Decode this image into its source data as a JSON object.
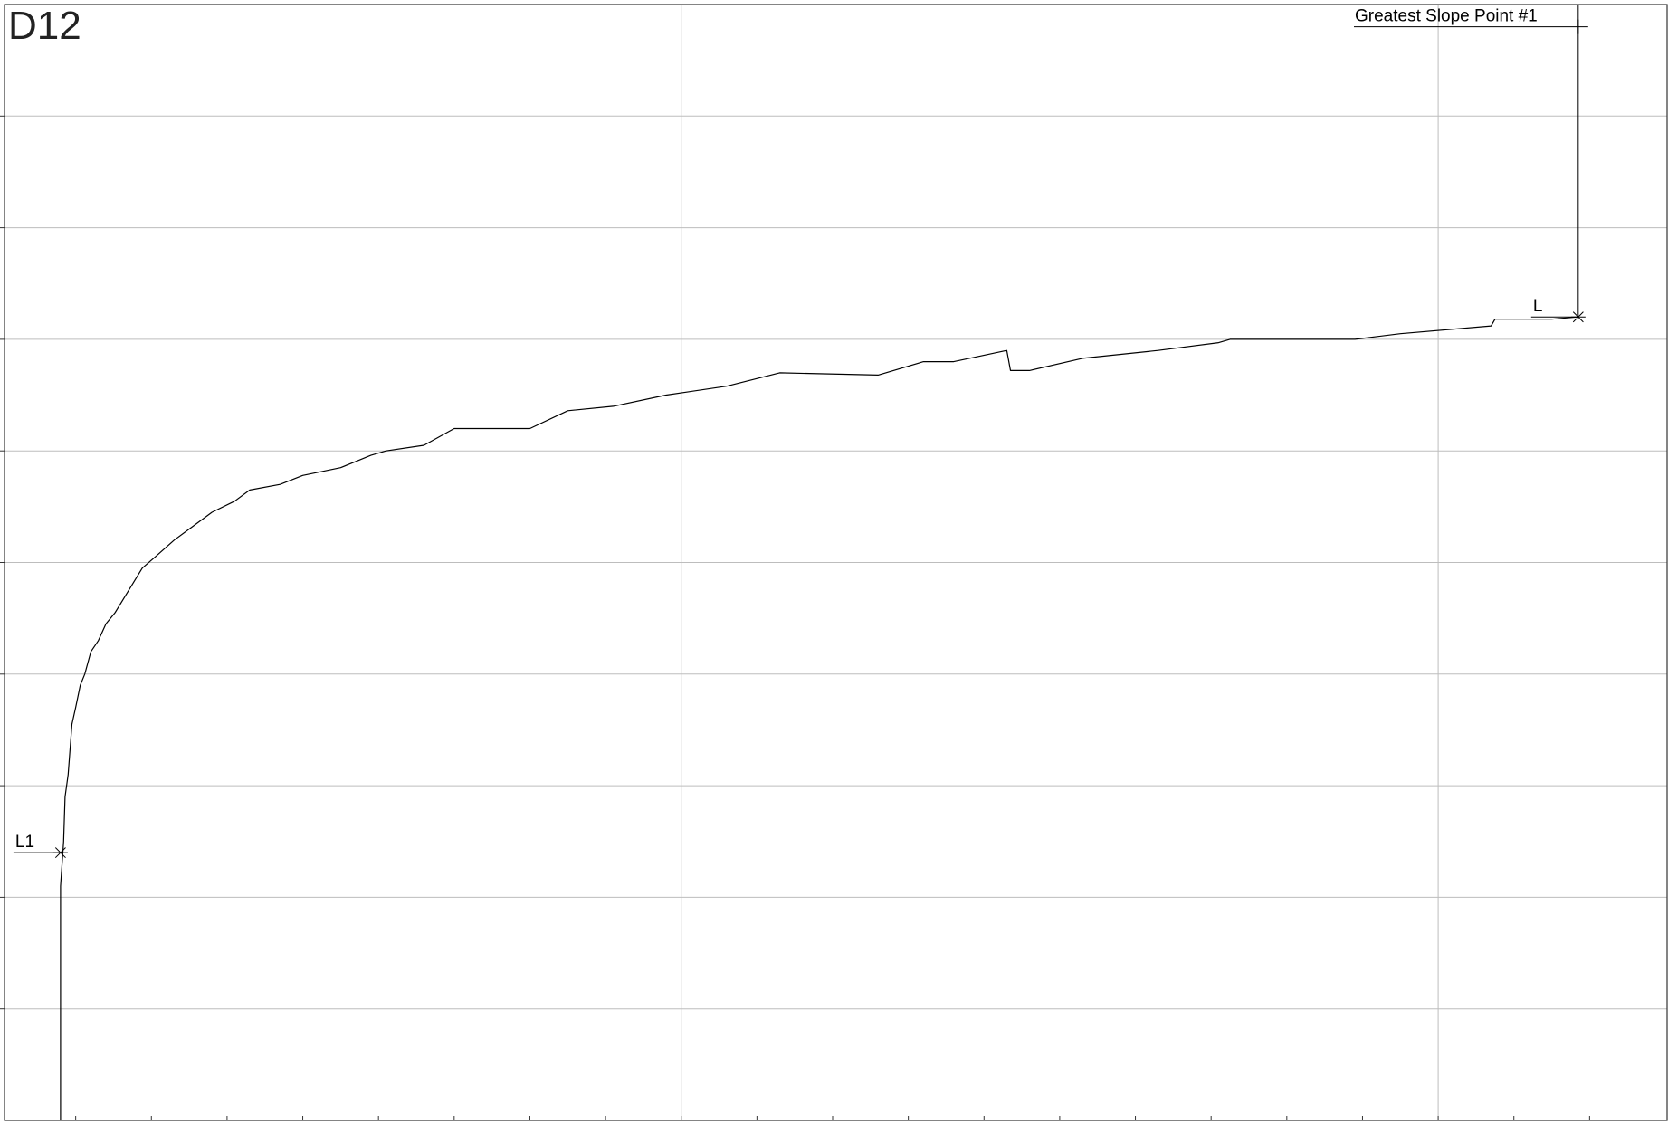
{
  "chart_data": {
    "type": "line",
    "title": "D12",
    "xlabel": "",
    "ylabel": "",
    "grid": true,
    "xlim": [
      0,
      22
    ],
    "ylim": [
      0,
      10
    ],
    "x_major_lines": [
      9,
      19
    ],
    "series": [
      {
        "points": [
          [
            0.8,
            0.0
          ],
          [
            0.8,
            2.1
          ],
          [
            0.84,
            2.5
          ],
          [
            0.86,
            2.9
          ],
          [
            0.9,
            3.1
          ],
          [
            0.95,
            3.55
          ],
          [
            1.0,
            3.7
          ],
          [
            1.06,
            3.9
          ],
          [
            1.12,
            4.0
          ],
          [
            1.2,
            4.2
          ],
          [
            1.3,
            4.3
          ],
          [
            1.4,
            4.45
          ],
          [
            1.52,
            4.55
          ],
          [
            1.7,
            4.75
          ],
          [
            1.88,
            4.95
          ],
          [
            2.05,
            5.05
          ],
          [
            2.3,
            5.2
          ],
          [
            2.5,
            5.3
          ],
          [
            2.8,
            5.45
          ],
          [
            3.1,
            5.55
          ],
          [
            3.3,
            5.65
          ],
          [
            3.7,
            5.7
          ],
          [
            4.0,
            5.78
          ],
          [
            4.5,
            5.85
          ],
          [
            4.9,
            5.96
          ],
          [
            5.1,
            6.0
          ],
          [
            5.6,
            6.05
          ],
          [
            6.0,
            6.2
          ],
          [
            7.0,
            6.2
          ],
          [
            7.5,
            6.36
          ],
          [
            8.1,
            6.4
          ],
          [
            8.8,
            6.5
          ],
          [
            9.6,
            6.58
          ],
          [
            10.3,
            6.7
          ],
          [
            11.6,
            6.68
          ],
          [
            12.2,
            6.8
          ],
          [
            12.6,
            6.8
          ],
          [
            13.3,
            6.9
          ],
          [
            13.35,
            6.72
          ],
          [
            13.6,
            6.72
          ],
          [
            14.3,
            6.83
          ],
          [
            15.3,
            6.9
          ],
          [
            16.1,
            6.97
          ],
          [
            16.25,
            7.0
          ],
          [
            17.9,
            7.0
          ],
          [
            18.5,
            7.05
          ],
          [
            19.7,
            7.12
          ],
          [
            19.75,
            7.18
          ],
          [
            20.5,
            7.18
          ],
          [
            20.85,
            7.2
          ]
        ]
      }
    ],
    "markers": [
      {
        "label": "L1",
        "x": 0.8,
        "y": 2.4
      },
      {
        "label": "L",
        "x": 20.85,
        "y": 7.2
      }
    ],
    "annotations": [
      {
        "label": "Greatest Slope Point #1",
        "x": 20.85,
        "y": 9.8
      }
    ]
  }
}
